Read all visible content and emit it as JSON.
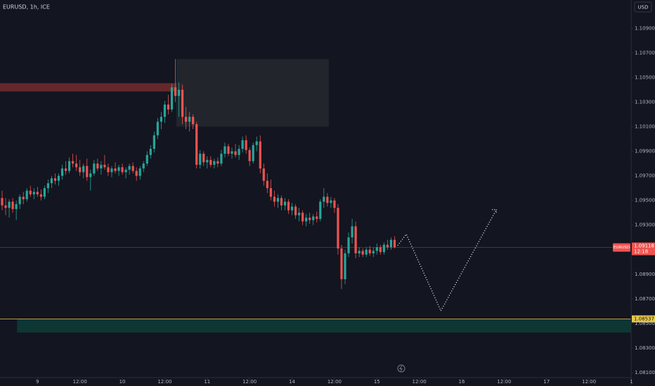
{
  "chart_data": {
    "type": "candlestick",
    "title": "EURUSD, 1h, ICE",
    "currency": "USD",
    "symbol": "EURUSD",
    "last_price": 1.09118,
    "countdown": "12:18",
    "up_color": "#26a69a",
    "down_color": "#ef5350",
    "xlim": [
      -0.6,
      178.3
    ],
    "ylim": [
      1.0806,
      1.1113
    ],
    "xticks": [
      {
        "value": 10,
        "label": "9"
      },
      {
        "value": 22,
        "label": "12:00"
      },
      {
        "value": 34,
        "label": "10"
      },
      {
        "value": 46,
        "label": "12:00"
      },
      {
        "value": 58,
        "label": "11"
      },
      {
        "value": 70,
        "label": "12:00"
      },
      {
        "value": 82,
        "label": "14"
      },
      {
        "value": 94,
        "label": "12:00"
      },
      {
        "value": 106,
        "label": "15"
      },
      {
        "value": 118,
        "label": "12:00"
      },
      {
        "value": 130,
        "label": "16"
      },
      {
        "value": 142,
        "label": "12:00"
      },
      {
        "value": 154,
        "label": "17"
      },
      {
        "value": 166,
        "label": "12:00"
      },
      {
        "value": 178,
        "label": "1"
      }
    ],
    "yticks": [
      {
        "value": 1.081,
        "label": "1.08100"
      },
      {
        "value": 1.083,
        "label": "1.08300"
      },
      {
        "value": 1.085,
        "label": "1.08500"
      },
      {
        "value": 1.087,
        "label": "1.08700"
      },
      {
        "value": 1.089,
        "label": "1.08900"
      },
      {
        "value": 1.093,
        "label": "1.09300"
      },
      {
        "value": 1.095,
        "label": "1.09500"
      },
      {
        "value": 1.097,
        "label": "1.09700"
      },
      {
        "value": 1.099,
        "label": "1.09900"
      },
      {
        "value": 1.101,
        "label": "1.10100"
      },
      {
        "value": 1.103,
        "label": "1.10300"
      },
      {
        "value": 1.105,
        "label": "1.10500"
      },
      {
        "value": 1.107,
        "label": "1.10700"
      },
      {
        "value": 1.109,
        "label": "1.10900"
      }
    ],
    "level": {
      "value": 1.08537,
      "color": "#e7c84a"
    },
    "zones": [
      {
        "x": [
          -0.6,
          51.5
        ],
        "y": [
          1.10386,
          1.10454
        ],
        "color": "#6e2a2c"
      },
      {
        "x": [
          49.3,
          92.4
        ],
        "y": [
          1.101,
          1.10649
        ],
        "color": "#25272e"
      },
      {
        "x": [
          4.2,
          178.3
        ],
        "y": [
          1.08426,
          1.08534
        ],
        "color": "#0e3a35"
      }
    ],
    "projection": {
      "x": [
        111.9,
        114.3,
        124.1,
        139.8
      ],
      "y": [
        1.09134,
        1.09226,
        1.08603,
        1.09426
      ],
      "color": "#ffffff"
    },
    "x": [
      0,
      1,
      2,
      3,
      4,
      5,
      6,
      7,
      8,
      9,
      10,
      11,
      12,
      13,
      14,
      15,
      16,
      17,
      18,
      19,
      20,
      21,
      22,
      23,
      24,
      25,
      26,
      27,
      28,
      29,
      30,
      31,
      32,
      33,
      34,
      35,
      36,
      37,
      38,
      39,
      40,
      41,
      42,
      43,
      44,
      45,
      46,
      47,
      48,
      49,
      50,
      51,
      52,
      53,
      54,
      55,
      56,
      57,
      58,
      59,
      60,
      61,
      62,
      63,
      64,
      65,
      66,
      67,
      68,
      69,
      70,
      71,
      72,
      73,
      74,
      75,
      76,
      77,
      78,
      79,
      80,
      81,
      82,
      83,
      84,
      85,
      86,
      87,
      88,
      89,
      90,
      91,
      92,
      93,
      94,
      95,
      96,
      97,
      98,
      99,
      100,
      101,
      102,
      103,
      104,
      105,
      106,
      107,
      108,
      109,
      110,
      111
    ],
    "ohlc": [
      [
        1.0952,
        1.0958,
        1.0942,
        1.0946
      ],
      [
        1.0946,
        1.0952,
        1.0938,
        1.0944
      ],
      [
        1.0944,
        1.0951,
        1.0936,
        1.0949
      ],
      [
        1.0949,
        1.0952,
        1.094,
        1.0943
      ],
      [
        1.0943,
        1.095,
        1.0934,
        1.0947
      ],
      [
        1.0947,
        1.0955,
        1.0943,
        1.0953
      ],
      [
        1.0953,
        1.0957,
        1.0947,
        1.0951
      ],
      [
        1.0951,
        1.096,
        1.0949,
        1.0958
      ],
      [
        1.0958,
        1.0962,
        1.0953,
        1.0955
      ],
      [
        1.0955,
        1.096,
        1.0951,
        1.0957
      ],
      [
        1.0957,
        1.0961,
        1.0953,
        1.0955
      ],
      [
        1.0955,
        1.0959,
        1.095,
        1.0953
      ],
      [
        1.0953,
        1.0962,
        1.0951,
        1.096
      ],
      [
        1.096,
        1.0967,
        1.0956,
        1.0964
      ],
      [
        1.0964,
        1.097,
        1.096,
        1.0968
      ],
      [
        1.0968,
        1.0972,
        1.0963,
        1.0966
      ],
      [
        1.0966,
        1.0972,
        1.0962,
        1.097
      ],
      [
        1.097,
        1.0979,
        1.0967,
        1.0976
      ],
      [
        1.0976,
        1.0982,
        1.0971,
        1.0974
      ],
      [
        1.0974,
        1.0985,
        1.0972,
        1.0982
      ],
      [
        1.0982,
        1.0988,
        1.0977,
        1.098
      ],
      [
        1.098,
        1.0987,
        1.0974,
        1.0977
      ],
      [
        1.0977,
        1.0983,
        1.097,
        1.0973
      ],
      [
        1.0973,
        1.098,
        1.0968,
        1.0978
      ],
      [
        1.0978,
        1.0984,
        1.0966,
        1.0969
      ],
      [
        1.0969,
        1.0975,
        1.0958,
        1.0972
      ],
      [
        1.0972,
        1.0983,
        1.097,
        1.098
      ],
      [
        1.098,
        1.0984,
        1.0974,
        1.0976
      ],
      [
        1.0976,
        1.0982,
        1.0971,
        1.0979
      ],
      [
        1.0979,
        1.0987,
        1.0975,
        1.0977
      ],
      [
        1.0977,
        1.098,
        1.097,
        1.0973
      ],
      [
        1.0973,
        1.0978,
        1.0969,
        1.0976
      ],
      [
        1.0976,
        1.0981,
        1.0972,
        1.0974
      ],
      [
        1.0974,
        1.0979,
        1.097,
        1.0977
      ],
      [
        1.0977,
        1.098,
        1.0971,
        1.0973
      ],
      [
        1.0973,
        1.0977,
        1.0968,
        1.0975
      ],
      [
        1.0975,
        1.098,
        1.0971,
        1.0978
      ],
      [
        1.0978,
        1.0981,
        1.0972,
        1.0974
      ],
      [
        1.0974,
        1.0977,
        1.0966,
        1.097
      ],
      [
        1.097,
        1.0978,
        1.0967,
        1.0976
      ],
      [
        1.0976,
        1.0982,
        1.0973,
        1.098
      ],
      [
        1.098,
        1.099,
        1.0978,
        1.0987
      ],
      [
        1.0987,
        1.0995,
        1.0984,
        1.0992
      ],
      [
        1.0992,
        1.1006,
        1.0989,
        1.1003
      ],
      [
        1.1003,
        1.1017,
        1.1,
        1.1014
      ],
      [
        1.1014,
        1.1022,
        1.1008,
        1.1018
      ],
      [
        1.1018,
        1.1031,
        1.1013,
        1.1028
      ],
      [
        1.1028,
        1.1036,
        1.102,
        1.1024
      ],
      [
        1.1024,
        1.1045,
        1.1022,
        1.1042
      ],
      [
        1.1042,
        1.1065,
        1.103,
        1.1035
      ],
      [
        1.1035,
        1.1046,
        1.1018,
        1.104
      ],
      [
        1.104,
        1.1044,
        1.1012,
        1.1018
      ],
      [
        1.1018,
        1.1026,
        1.1008,
        1.1014
      ],
      [
        1.1014,
        1.1022,
        1.1006,
        1.1018
      ],
      [
        1.1018,
        1.102,
        1.1008,
        1.1012
      ],
      [
        1.1012,
        1.1014,
        1.0976,
        1.0979
      ],
      [
        1.0979,
        1.0991,
        1.0976,
        1.0988
      ],
      [
        1.0988,
        1.099,
        1.0978,
        1.0981
      ],
      [
        1.0981,
        1.0986,
        1.0976,
        1.0983
      ],
      [
        1.0983,
        1.0986,
        1.0977,
        1.0979
      ],
      [
        1.0979,
        1.0984,
        1.0976,
        1.0982
      ],
      [
        1.0982,
        1.0985,
        1.0977,
        1.098
      ],
      [
        1.098,
        1.0991,
        1.0978,
        1.0988
      ],
      [
        1.0988,
        1.0997,
        1.0985,
        1.0994
      ],
      [
        1.0994,
        1.0996,
        1.0986,
        1.0988
      ],
      [
        1.0988,
        1.0993,
        1.0984,
        1.099
      ],
      [
        1.099,
        1.0996,
        1.0985,
        1.0987
      ],
      [
        1.0987,
        1.0995,
        1.0983,
        1.0992
      ],
      [
        1.0992,
        1.1002,
        1.0989,
        1.0999
      ],
      [
        1.0999,
        1.1003,
        1.0988,
        1.0991
      ],
      [
        1.0991,
        1.0993,
        1.0978,
        1.0982
      ],
      [
        1.0982,
        1.0997,
        1.098,
        1.0995
      ],
      [
        1.0995,
        1.1002,
        1.099,
        1.0998
      ],
      [
        1.0998,
        1.1003,
        1.0972,
        1.0976
      ],
      [
        1.0976,
        1.098,
        1.0962,
        1.0966
      ],
      [
        1.0966,
        1.0972,
        1.0956,
        1.096
      ],
      [
        1.096,
        1.0967,
        1.095,
        1.0953
      ],
      [
        1.0953,
        1.0958,
        1.0945,
        1.0949
      ],
      [
        1.0949,
        1.0955,
        1.0944,
        1.0952
      ],
      [
        1.0952,
        1.0954,
        1.0942,
        1.0946
      ],
      [
        1.0946,
        1.0952,
        1.0942,
        1.0949
      ],
      [
        1.0949,
        1.0951,
        1.0939,
        1.0942
      ],
      [
        1.0942,
        1.0948,
        1.0938,
        1.0945
      ],
      [
        1.0945,
        1.0947,
        1.0935,
        1.0938
      ],
      [
        1.0938,
        1.0944,
        1.0933,
        1.094
      ],
      [
        1.094,
        1.0942,
        1.093,
        1.0933
      ],
      [
        1.0933,
        1.0939,
        1.0929,
        1.0936
      ],
      [
        1.0936,
        1.094,
        1.0931,
        1.0934
      ],
      [
        1.0934,
        1.0939,
        1.093,
        1.0937
      ],
      [
        1.0937,
        1.0941,
        1.0932,
        1.0935
      ],
      [
        1.0935,
        1.0951,
        1.0933,
        1.0949
      ],
      [
        1.0949,
        1.096,
        1.0944,
        1.0953
      ],
      [
        1.0953,
        1.0956,
        1.0945,
        1.0948
      ],
      [
        1.0948,
        1.0953,
        1.0944,
        1.095
      ],
      [
        1.095,
        1.0952,
        1.094,
        1.0944
      ],
      [
        1.0944,
        1.0947,
        1.0906,
        1.0911
      ],
      [
        1.0911,
        1.0914,
        1.0878,
        1.0886
      ],
      [
        1.0886,
        1.091,
        1.0882,
        1.0907
      ],
      [
        1.0907,
        1.0924,
        1.0904,
        1.092
      ],
      [
        1.092,
        1.0935,
        1.0915,
        1.0929
      ],
      [
        1.0929,
        1.0933,
        1.0903,
        1.0907
      ],
      [
        1.0907,
        1.0912,
        1.0904,
        1.0909
      ],
      [
        1.0909,
        1.0911,
        1.0904,
        1.0906
      ],
      [
        1.0906,
        1.0912,
        1.0904,
        1.091
      ],
      [
        1.091,
        1.0913,
        1.0905,
        1.0907
      ],
      [
        1.0907,
        1.0912,
        1.0904,
        1.0909
      ],
      [
        1.0909,
        1.0915,
        1.0906,
        1.0912
      ],
      [
        1.0912,
        1.0914,
        1.0906,
        1.0908
      ],
      [
        1.0908,
        1.0916,
        1.0906,
        1.0914
      ],
      [
        1.0914,
        1.0918,
        1.091,
        1.0912
      ],
      [
        1.0912,
        1.092,
        1.091,
        1.0918
      ],
      [
        1.0918,
        1.0921,
        1.0911,
        1.0912
      ]
    ]
  }
}
